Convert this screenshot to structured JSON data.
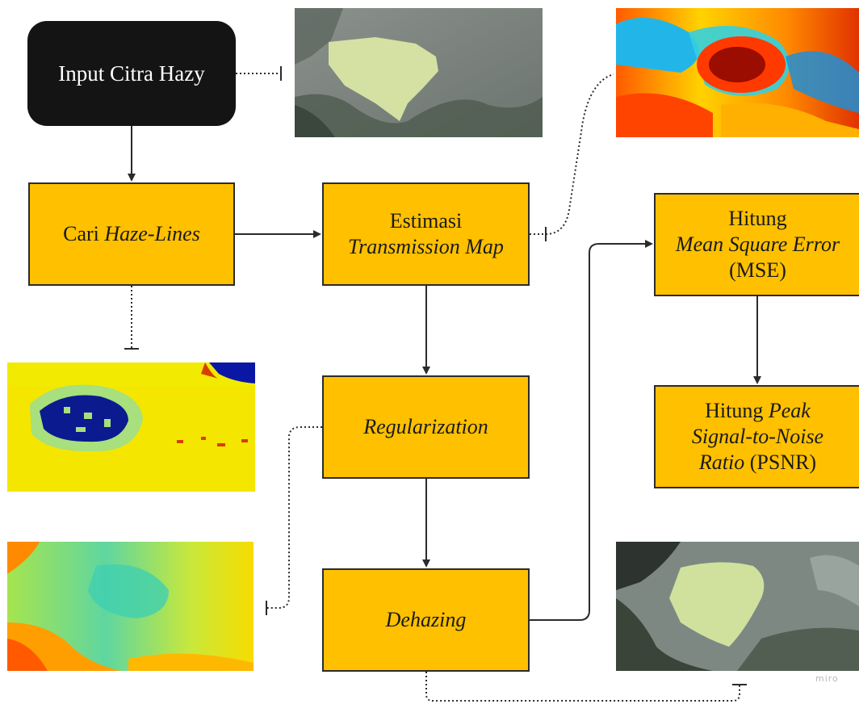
{
  "nodes": {
    "input": {
      "text": "Input Citra Hazy"
    },
    "haze_lines": {
      "prefix": "Cari ",
      "italic": "Haze-Lines"
    },
    "transmission": {
      "line1": "Estimasi",
      "line2_italic": "Transmission Map"
    },
    "regularization": {
      "italic": "Regularization"
    },
    "dehazing": {
      "italic": "Dehazing"
    },
    "mse": {
      "line1": "Hitung",
      "line2_italic": "Mean Square Error",
      "line3": "(MSE)"
    },
    "psnr": {
      "prefix": "Hitung ",
      "italic1": "Peak",
      "italic2": "Signal-to-Noise",
      "italic3": "Ratio",
      "suffix": " (PSNR)"
    }
  },
  "images": [
    "hazy-input-photo",
    "transmission-map-heatmap",
    "haze-lines-cluster-map",
    "regularized-transmission-map",
    "dehazed-output-photo"
  ],
  "colors": {
    "process_box": "#ffc000",
    "input_box": "#141414",
    "line": "#2b2b2b"
  },
  "watermark": "miro"
}
